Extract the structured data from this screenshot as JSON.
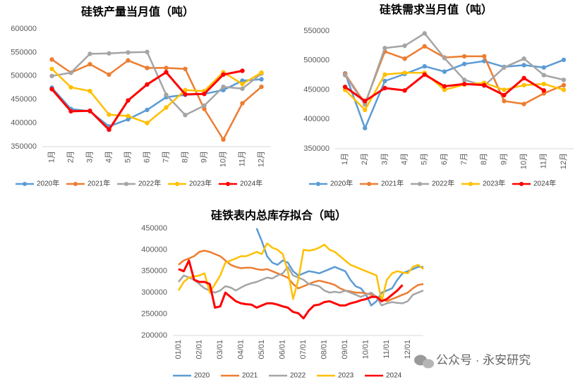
{
  "chart_data": [
    {
      "type": "line",
      "title": "硅铁产量当月值（吨）",
      "markers": true,
      "grid": false,
      "categories": [
        "1月",
        "2月",
        "3月",
        "4月",
        "5月",
        "6月",
        "7月",
        "8月",
        "9月",
        "10月",
        "11月",
        "12月"
      ],
      "ylim": [
        350000,
        600000
      ],
      "yticks": [
        350000,
        400000,
        450000,
        500000,
        550000,
        600000
      ],
      "series": [
        {
          "name": "2020年",
          "color": "#5b9bd5",
          "values": [
            475000,
            430000,
            425000,
            393000,
            408000,
            428000,
            455000,
            460000,
            462000,
            470000,
            490000,
            493000
          ]
        },
        {
          "name": "2021年",
          "color": "#ed7d31",
          "values": [
            535000,
            507000,
            525000,
            503000,
            533000,
            517000,
            517000,
            515000,
            430000,
            365000,
            442000,
            477000
          ]
        },
        {
          "name": "2022年",
          "color": "#a5a5a5",
          "values": [
            500000,
            507000,
            547000,
            548000,
            550000,
            551000,
            460000,
            417000,
            437000,
            477000,
            473000,
            505000
          ]
        },
        {
          "name": "2023年",
          "color": "#ffc000",
          "values": [
            515000,
            476000,
            468000,
            418000,
            415000,
            400000,
            433000,
            470000,
            468000,
            508000,
            483000,
            507000
          ]
        },
        {
          "name": "2024年",
          "color": "#ff0000",
          "values": [
            472000,
            425000,
            426000,
            386000,
            448000,
            482000,
            508000,
            461000,
            462000,
            503000,
            511000,
            null
          ]
        }
      ]
    },
    {
      "type": "line",
      "title": "硅铁需求当月值（吨）",
      "markers": true,
      "grid": false,
      "categories": [
        "1月",
        "2月",
        "3月",
        "4月",
        "5月",
        "6月",
        "7月",
        "8月",
        "9月",
        "10月",
        "11月",
        "12月"
      ],
      "ylim": [
        350000,
        550000
      ],
      "yticks": [
        350000,
        400000,
        450000,
        500000,
        550000
      ],
      "series": [
        {
          "name": "2020年",
          "color": "#5b9bd5",
          "values": [
            478000,
            385000,
            465000,
            477000,
            490000,
            481000,
            494000,
            499000,
            489000,
            492000,
            488000,
            501000
          ]
        },
        {
          "name": "2021年",
          "color": "#ed7d31",
          "values": [
            477000,
            427000,
            515000,
            503000,
            524000,
            505000,
            507000,
            507000,
            431000,
            426000,
            444000,
            458000
          ]
        },
        {
          "name": "2022年",
          "color": "#a5a5a5",
          "values": [
            475000,
            425000,
            521000,
            525000,
            546000,
            504000,
            467000,
            457000,
            488000,
            503000,
            475000,
            467000
          ]
        },
        {
          "name": "2023年",
          "color": "#ffc000",
          "values": [
            450000,
            416000,
            476000,
            479000,
            479000,
            450000,
            459000,
            462000,
            450000,
            458000,
            460000,
            450000
          ]
        },
        {
          "name": "2024年",
          "color": "#ff0000",
          "values": [
            455000,
            431000,
            453000,
            449000,
            476000,
            456000,
            460000,
            458000,
            441000,
            470000,
            449000,
            null
          ]
        }
      ]
    },
    {
      "type": "line",
      "title": "硅铁表内总库存拟合（吨）",
      "markers": false,
      "grid": false,
      "categories": [
        "01/01",
        null,
        null,
        null,
        "02/01",
        null,
        null,
        null,
        "03/01",
        null,
        null,
        null,
        "04/01",
        null,
        null,
        null,
        "05/01",
        null,
        null,
        null,
        "06/01",
        null,
        null,
        null,
        "07/01",
        null,
        null,
        null,
        "08/01",
        null,
        null,
        null,
        "09/01",
        null,
        null,
        null,
        "10/01",
        null,
        null,
        null,
        "11/01",
        null,
        null,
        null,
        "12/01",
        null,
        null,
        null
      ],
      "ylim": [
        200000,
        450000
      ],
      "yticks": [
        200000,
        250000,
        300000,
        350000,
        400000,
        450000
      ],
      "series": [
        {
          "name": "2020",
          "color": "#5b9bd5",
          "values": [
            null,
            null,
            null,
            null,
            null,
            null,
            null,
            null,
            null,
            null,
            null,
            null,
            null,
            null,
            null,
            450000,
            420000,
            385000,
            370000,
            365000,
            375000,
            370000,
            350000,
            340000,
            345000,
            350000,
            348000,
            345000,
            350000,
            355000,
            360000,
            355000,
            350000,
            330000,
            315000,
            310000,
            295000,
            270000,
            280000,
            300000,
            305000,
            310000,
            330000,
            345000,
            350000,
            355000,
            360000,
            360000
          ]
        },
        {
          "name": "2021",
          "color": "#ed7d31",
          "values": [
            365000,
            375000,
            380000,
            385000,
            395000,
            398000,
            395000,
            390000,
            385000,
            375000,
            365000,
            360000,
            357000,
            358000,
            358000,
            355000,
            353000,
            355000,
            350000,
            345000,
            340000,
            335000,
            320000,
            310000,
            315000,
            320000,
            325000,
            328000,
            325000,
            322000,
            318000,
            310000,
            305000,
            303000,
            300000,
            300000,
            298000,
            295000,
            290000,
            285000,
            280000,
            285000,
            290000,
            295000,
            300000,
            310000,
            318000,
            320000
          ]
        },
        {
          "name": "2022",
          "color": "#a5a5a5",
          "values": [
            325000,
            340000,
            335000,
            330000,
            320000,
            310000,
            305000,
            300000,
            305000,
            315000,
            312000,
            305000,
            312000,
            318000,
            322000,
            325000,
            330000,
            335000,
            333000,
            340000,
            345000,
            360000,
            340000,
            335000,
            330000,
            320000,
            318000,
            315000,
            305000,
            300000,
            302000,
            300000,
            305000,
            300000,
            295000,
            290000,
            295000,
            300000,
            290000,
            270000,
            275000,
            278000,
            276000,
            275000,
            280000,
            295000,
            300000,
            305000
          ]
        },
        {
          "name": "2023",
          "color": "#ffc000",
          "values": [
            305000,
            325000,
            335000,
            338000,
            340000,
            345000,
            300000,
            320000,
            340000,
            370000,
            375000,
            380000,
            385000,
            385000,
            390000,
            395000,
            390000,
            415000,
            405000,
            400000,
            390000,
            350000,
            285000,
            330000,
            400000,
            398000,
            400000,
            405000,
            412000,
            400000,
            395000,
            385000,
            375000,
            365000,
            360000,
            355000,
            350000,
            345000,
            340000,
            280000,
            330000,
            345000,
            350000,
            347000,
            345000,
            360000,
            365000,
            355000
          ]
        },
        {
          "name": "2024",
          "color": "#ff0000",
          "values": [
            355000,
            350000,
            375000,
            330000,
            325000,
            325000,
            320000,
            265000,
            268000,
            300000,
            290000,
            280000,
            275000,
            273000,
            272000,
            265000,
            270000,
            275000,
            275000,
            272000,
            268000,
            265000,
            255000,
            252000,
            240000,
            258000,
            270000,
            272000,
            278000,
            280000,
            275000,
            270000,
            270000,
            275000,
            278000,
            282000,
            285000,
            290000,
            290000,
            280000,
            285000,
            295000,
            305000,
            318000,
            null,
            null,
            null,
            null
          ]
        }
      ]
    }
  ],
  "watermark": "公众号 · 永安研究"
}
